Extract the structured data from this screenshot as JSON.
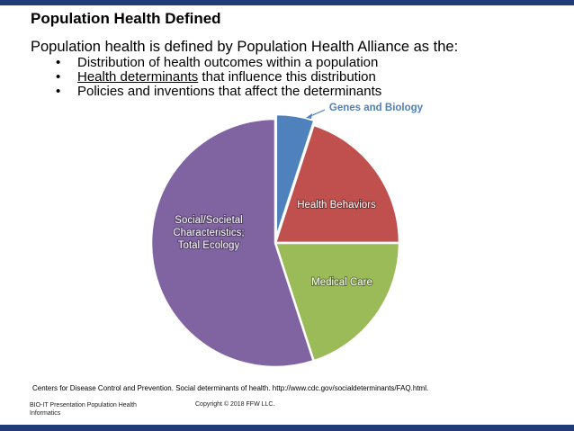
{
  "slide": {
    "title": "Population Health Defined",
    "intro": "Population health is defined by Population Health Alliance as the:",
    "bullets": [
      {
        "lead": "",
        "underlined": "",
        "rest": "Distribution of health outcomes within a population"
      },
      {
        "lead": "",
        "underlined": "Health determinants",
        "rest": " that influence this distribution"
      },
      {
        "lead": "",
        "underlined": "",
        "rest": "Policies and inventions that affect the determinants"
      }
    ],
    "source": "Centers for Disease Control and Prevention. Social determinants of health. http://www.cdc.gov/socialdeterminants/FAQ.html.",
    "footer_left_line1": "BIO-IT Presentation Population Health",
    "footer_left_line2": "Informatics",
    "footer_copyright": "Copyright © 2018 FFW LLC.",
    "colors": {
      "bars": "#1f3c78"
    }
  },
  "chart_data": {
    "type": "pie",
    "title": "",
    "categories": [
      "Genes and Biology",
      "Health Behaviors",
      "Medical Care",
      "Social/Societal Characteristics; Total Ecology"
    ],
    "values": [
      5,
      20,
      20,
      55
    ],
    "label_lines": [
      [
        "Genes and Biology"
      ],
      [
        "Health Behaviors"
      ],
      [
        "Medical Care"
      ],
      [
        "Social/Societal",
        "Characteristics;",
        "Total Ecology"
      ]
    ],
    "colors": [
      "#4f81bd",
      "#c0504d",
      "#9bbb59",
      "#8064a2"
    ],
    "start_angle_deg": 0,
    "direction": "clockwise",
    "legend": "none"
  }
}
